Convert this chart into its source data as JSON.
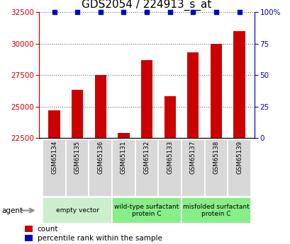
{
  "title": "GDS2054 / 224913_s_at",
  "categories": [
    "GSM65134",
    "GSM65135",
    "GSM65136",
    "GSM65131",
    "GSM65132",
    "GSM65133",
    "GSM65137",
    "GSM65138",
    "GSM65139"
  ],
  "bar_values": [
    24700,
    26300,
    27500,
    22900,
    28700,
    25800,
    29300,
    30000,
    31000
  ],
  "percentile_values": [
    100,
    100,
    100,
    100,
    100,
    100,
    100,
    100,
    100
  ],
  "bar_color": "#cc0000",
  "percentile_color": "#0000cc",
  "ylim_left": [
    22500,
    32500
  ],
  "ylim_right": [
    0,
    100
  ],
  "yticks_left": [
    22500,
    25000,
    27500,
    30000,
    32500
  ],
  "yticks_right": [
    0,
    25,
    50,
    75,
    100
  ],
  "ytick_labels_right": [
    "0",
    "25",
    "50",
    "75",
    "100%"
  ],
  "groups": [
    {
      "label": "empty vector",
      "start": 0,
      "end": 3,
      "color": "#cceecc"
    },
    {
      "label": "wild-type surfactant\nprotein C",
      "start": 3,
      "end": 6,
      "color": "#88ee88"
    },
    {
      "label": "misfolded surfactant\nprotein C",
      "start": 6,
      "end": 9,
      "color": "#88ee88"
    }
  ],
  "agent_label": "agent",
  "legend_count_label": "count",
  "legend_percentile_label": "percentile rank within the sample",
  "title_fontsize": 11,
  "bar_width": 0.5,
  "sample_bg_color": "#d8d8d8",
  "background_color": "#ffffff"
}
